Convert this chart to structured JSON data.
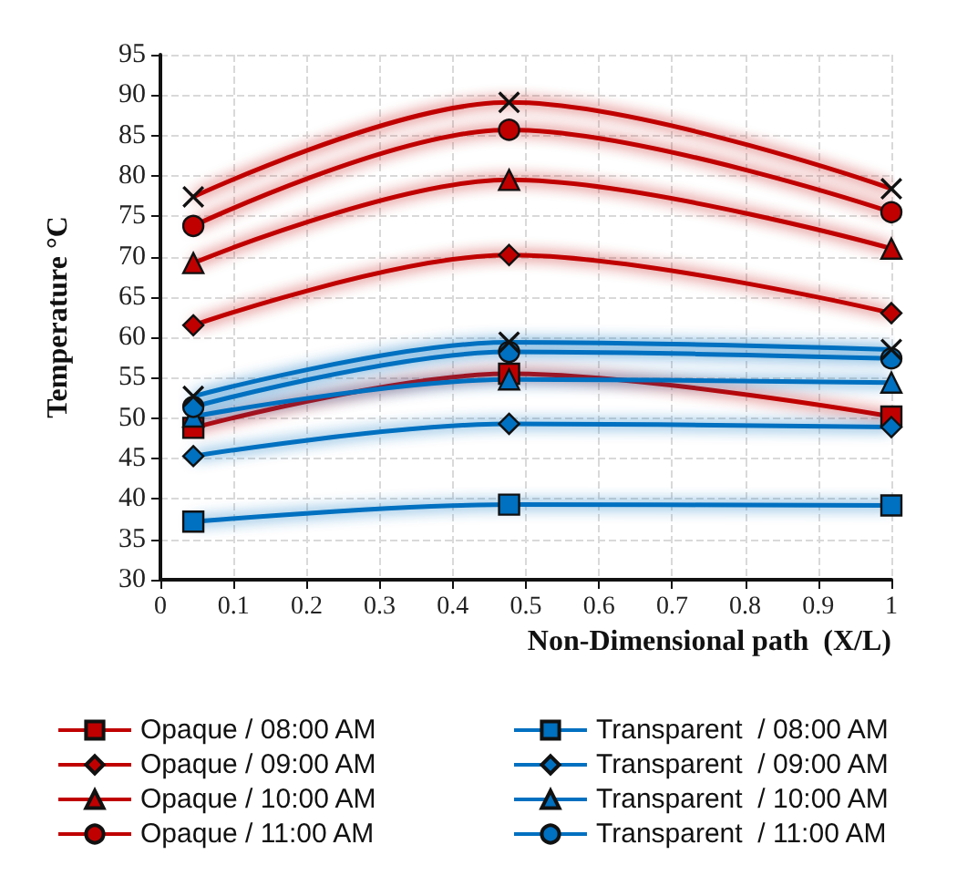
{
  "chart_data": {
    "type": "line",
    "xlabel": "Non-Dimensional path  (X/L)",
    "ylabel": "Temperature °C",
    "x": [
      0.045,
      0.477,
      1
    ],
    "xlim": [
      0,
      1
    ],
    "xticks": [
      0,
      0.1,
      0.2,
      0.3,
      0.4,
      0.5,
      0.6,
      0.7,
      0.8,
      0.9,
      1
    ],
    "ylim": [
      30,
      95
    ],
    "yticks": [
      30,
      35,
      40,
      45,
      50,
      55,
      60,
      65,
      70,
      75,
      80,
      85,
      90,
      95
    ],
    "grid": true,
    "legend": "bottom",
    "line_style": "solid",
    "series": [
      {
        "name": "Opaque / 08:00 AM",
        "color": "#c00000",
        "marker": "square",
        "values": [
          48.8,
          55.5,
          50.2
        ]
      },
      {
        "name": "Opaque / 09:00 AM",
        "color": "#c00000",
        "marker": "diamond",
        "values": [
          61.5,
          70.2,
          63
        ]
      },
      {
        "name": "Opaque / 10:00 AM",
        "color": "#c00000",
        "marker": "triangle",
        "values": [
          69.2,
          79.5,
          71
        ]
      },
      {
        "name": "Opaque / 11:00 AM",
        "color": "#c00000",
        "marker": "circle",
        "values": [
          73.8,
          85.7,
          75.5
        ]
      },
      {
        "color": "#c00000",
        "marker": "cross",
        "values": [
          77.4,
          89.1,
          78.4
        ]
      },
      {
        "name": "Transparent  / 08:00 AM",
        "color": "#0070c0",
        "marker": "square",
        "values": [
          37.2,
          39.3,
          39.2
        ]
      },
      {
        "name": "Transparent  / 09:00 AM",
        "color": "#0070c0",
        "marker": "diamond",
        "values": [
          45.3,
          49.3,
          48.9
        ]
      },
      {
        "name": "Transparent  / 10:00 AM",
        "color": "#0070c0",
        "marker": "triangle",
        "values": [
          50.2,
          54.8,
          54.4
        ]
      },
      {
        "name": "Transparent  / 11:00 AM",
        "color": "#0070c0",
        "marker": "circle",
        "values": [
          51.4,
          58.2,
          57.4
        ]
      },
      {
        "color": "#0070c0",
        "marker": "cross",
        "values": [
          52.7,
          59.4,
          58.5
        ]
      }
    ]
  }
}
